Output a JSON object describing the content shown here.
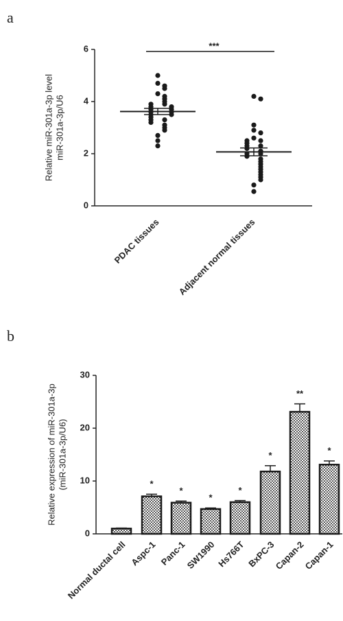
{
  "chart_data": [
    {
      "type": "dot",
      "panel": "a",
      "ylabel": [
        "Relative miR-301a-3p level",
        "miR-301a-3p/U6"
      ],
      "categories": [
        "PDAC tissues",
        "Adjacent normal tissues"
      ],
      "values": [
        [
          5.0,
          4.7,
          4.6,
          4.5,
          4.3,
          4.2,
          4.1,
          4.0,
          3.9,
          3.9,
          3.8,
          3.8,
          3.7,
          3.7,
          3.6,
          3.6,
          3.5,
          3.5,
          3.4,
          3.3,
          3.3,
          3.2,
          3.1,
          3.0,
          2.9,
          2.7,
          2.5,
          2.3
        ],
        [
          4.2,
          4.1,
          3.1,
          2.9,
          2.8,
          2.6,
          2.5,
          2.5,
          2.4,
          2.3,
          2.3,
          2.2,
          2.1,
          2.0,
          2.0,
          1.9,
          1.8,
          1.7,
          1.6,
          1.5,
          1.4,
          1.3,
          1.2,
          1.1,
          1.0,
          0.8,
          0.55
        ]
      ],
      "means": [
        3.62,
        2.07
      ],
      "errors": [
        0.12,
        0.15
      ],
      "significance": "***",
      "ylim": [
        0,
        6
      ],
      "yticks": [
        0,
        2,
        4,
        6
      ],
      "color": "#1a1a1a"
    },
    {
      "type": "bar",
      "panel": "b",
      "ylabel": [
        "Relative expression of  miR-301a-3p",
        "(miR-301a-3p/U6)"
      ],
      "categories": [
        "Normal ductal cell",
        "Aspc-1",
        "Panc-1",
        "SW1990",
        "Hs766T",
        "BxPC-3",
        "Capan-2",
        "Capan-1"
      ],
      "values": [
        1.0,
        7.1,
        5.9,
        4.7,
        6.0,
        11.8,
        23.1,
        13.1
      ],
      "errors": [
        0.1,
        0.4,
        0.3,
        0.2,
        0.3,
        1.1,
        1.5,
        0.7
      ],
      "annotations": [
        null,
        "*",
        "*",
        "*",
        "*",
        "*",
        "**",
        "*"
      ],
      "ylim": [
        0,
        30
      ],
      "yticks": [
        0,
        10,
        20,
        30
      ],
      "color": "#1a1a1a"
    }
  ]
}
